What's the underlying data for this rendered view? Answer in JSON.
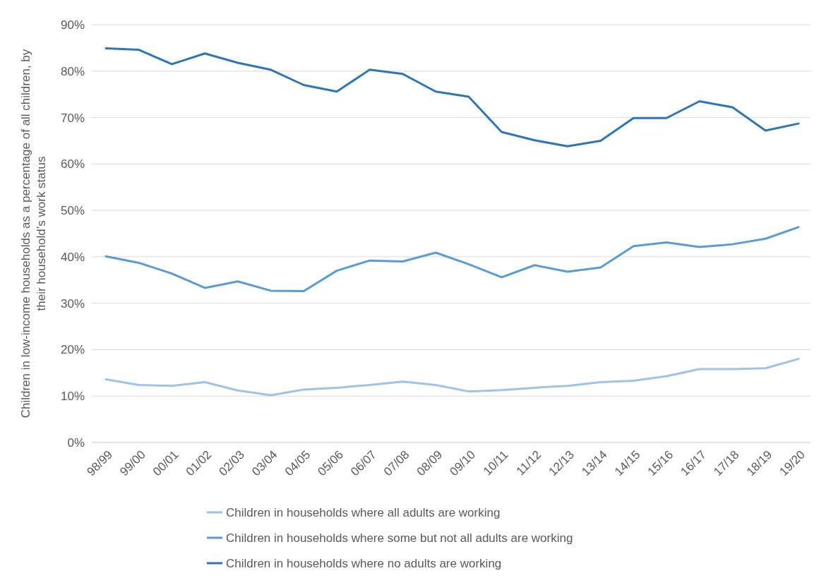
{
  "chart_data": {
    "type": "line",
    "ylabel": "Children in low-income households as a percentage of all children, by their household’s work status",
    "categories": [
      "98/99",
      "99/00",
      "00/01",
      "01/02",
      "02/03",
      "03/04",
      "04/05",
      "05/06",
      "06/07",
      "07/08",
      "08/09",
      "09/10",
      "10/11",
      "11/12",
      "12/13",
      "13/14",
      "14/15",
      "15/16",
      "16/17",
      "17/18",
      "18/19",
      "19/20"
    ],
    "series": [
      {
        "name": "Children in households where all adults are working",
        "color": "#9dc3e6",
        "values": [
          13.6,
          12.4,
          12.2,
          13.0,
          11.2,
          10.2,
          11.4,
          11.8,
          12.4,
          13.1,
          12.4,
          11.0,
          11.3,
          11.8,
          12.2,
          13.0,
          13.3,
          14.3,
          15.8,
          15.8,
          16.0,
          18.0
        ]
      },
      {
        "name": "Children in households where some but not all adults are working",
        "color": "#5b9bd5",
        "values": [
          40.1,
          38.7,
          36.4,
          33.3,
          34.7,
          32.7,
          32.6,
          37.0,
          39.2,
          39.0,
          40.9,
          38.4,
          35.6,
          38.2,
          36.8,
          37.7,
          42.3,
          43.1,
          42.1,
          42.7,
          43.9,
          46.4
        ]
      },
      {
        "name": "Children in households where no adults are working",
        "color": "#2e75b6",
        "values": [
          84.9,
          84.6,
          81.5,
          83.8,
          81.8,
          80.3,
          77.0,
          75.6,
          80.3,
          79.4,
          75.6,
          74.5,
          66.9,
          65.1,
          63.8,
          65.0,
          69.9,
          69.9,
          73.5,
          72.2,
          67.2,
          68.7
        ]
      }
    ],
    "ylim": [
      0,
      90
    ],
    "yticks": [
      {
        "value": 0,
        "label": "0%"
      },
      {
        "value": 10,
        "label": "10%"
      },
      {
        "value": 20,
        "label": "20%"
      },
      {
        "value": 30,
        "label": "30%"
      },
      {
        "value": 40,
        "label": "40%"
      },
      {
        "value": 50,
        "label": "50%"
      },
      {
        "value": 60,
        "label": "60%"
      },
      {
        "value": 70,
        "label": "70%"
      },
      {
        "value": 80,
        "label": "80%"
      },
      {
        "value": 90,
        "label": "90%"
      }
    ],
    "grid": "y",
    "legend": "bottom",
    "marker": "none",
    "line_style": "solid"
  }
}
